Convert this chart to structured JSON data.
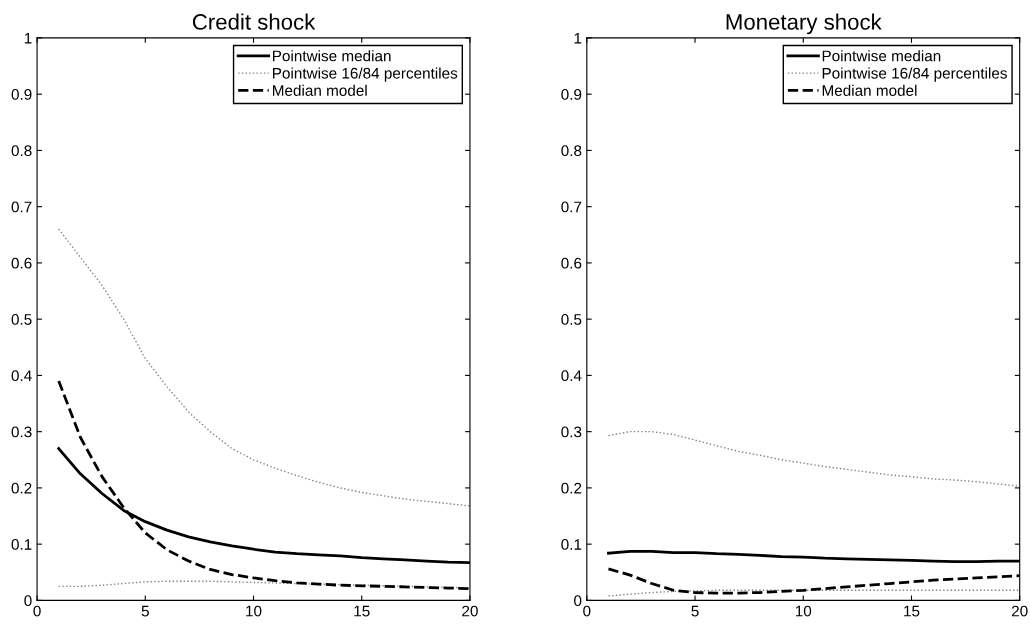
{
  "chart_data": [
    {
      "type": "line",
      "title": "Credit shock",
      "x": [
        1,
        2,
        3,
        4,
        5,
        6,
        7,
        8,
        9,
        10,
        11,
        12,
        13,
        14,
        15,
        16,
        17,
        18,
        19,
        20
      ],
      "xlim": [
        0,
        20
      ],
      "xticks": [
        0,
        5,
        10,
        15,
        20
      ],
      "ylim": [
        0,
        1
      ],
      "yticks": [
        0,
        0.1,
        0.2,
        0.3,
        0.4,
        0.5,
        0.6,
        0.7,
        0.8,
        0.9,
        1
      ],
      "grid": false,
      "legend": "top right",
      "series": [
        {
          "name": "Pointwise median",
          "color": "#000000",
          "line_style": "solid",
          "values": [
            0.27,
            0.225,
            0.19,
            0.16,
            0.14,
            0.125,
            0.113,
            0.104,
            0.097,
            0.091,
            0.086,
            0.083,
            0.081,
            0.079,
            0.076,
            0.074,
            0.072,
            0.07,
            0.068,
            0.067
          ]
        },
        {
          "name": "Pointwise 16/84 percentiles",
          "color": "#808080",
          "line_style": "dotted",
          "values": [
            0.66,
            0.61,
            0.56,
            0.5,
            0.43,
            0.38,
            0.335,
            0.3,
            0.27,
            0.25,
            0.235,
            0.222,
            0.21,
            0.2,
            0.192,
            0.186,
            0.18,
            0.176,
            0.172,
            0.168
          ]
        },
        {
          "color": "#808080",
          "line_style": "dotted",
          "values": [
            0.025,
            0.025,
            0.027,
            0.03,
            0.033,
            0.034,
            0.034,
            0.034,
            0.033,
            0.032,
            0.031,
            0.03,
            0.029,
            0.028,
            0.027,
            0.026,
            0.025,
            0.024,
            0.023,
            0.022
          ]
        },
        {
          "name": "Median model",
          "color": "#000000",
          "line_style": "dashed",
          "values": [
            0.39,
            0.29,
            0.22,
            0.165,
            0.12,
            0.09,
            0.07,
            0.055,
            0.046,
            0.04,
            0.035,
            0.031,
            0.029,
            0.027,
            0.026,
            0.025,
            0.024,
            0.023,
            0.022,
            0.021
          ]
        }
      ]
    },
    {
      "type": "line",
      "title": "Monetary shock",
      "x": [
        1,
        2,
        3,
        4,
        5,
        6,
        7,
        8,
        9,
        10,
        11,
        12,
        13,
        14,
        15,
        16,
        17,
        18,
        19,
        20
      ],
      "xlim": [
        0,
        20
      ],
      "xticks": [
        0,
        5,
        10,
        15,
        20
      ],
      "ylim": [
        0,
        1
      ],
      "yticks": [
        0,
        0.1,
        0.2,
        0.3,
        0.4,
        0.5,
        0.6,
        0.7,
        0.8,
        0.9,
        1
      ],
      "grid": false,
      "legend": "top right",
      "series": [
        {
          "name": "Pointwise median",
          "color": "#000000",
          "line_style": "solid",
          "values": [
            0.084,
            0.087,
            0.087,
            0.085,
            0.085,
            0.083,
            0.082,
            0.08,
            0.078,
            0.077,
            0.075,
            0.074,
            0.073,
            0.072,
            0.071,
            0.07,
            0.069,
            0.069,
            0.07,
            0.07
          ]
        },
        {
          "name": "Pointwise 16/84 percentiles",
          "color": "#808080",
          "line_style": "dotted",
          "values": [
            0.293,
            0.3,
            0.3,
            0.295,
            0.285,
            0.275,
            0.265,
            0.258,
            0.25,
            0.244,
            0.238,
            0.233,
            0.228,
            0.223,
            0.22,
            0.216,
            0.214,
            0.211,
            0.207,
            0.203
          ]
        },
        {
          "color": "#808080",
          "line_style": "dotted",
          "values": [
            0.008,
            0.011,
            0.014,
            0.016,
            0.017,
            0.018,
            0.018,
            0.018,
            0.018,
            0.018,
            0.018,
            0.018,
            0.018,
            0.018,
            0.018,
            0.018,
            0.018,
            0.018,
            0.018,
            0.018
          ]
        },
        {
          "name": "Median model",
          "color": "#000000",
          "line_style": "dashed",
          "values": [
            0.056,
            0.045,
            0.03,
            0.018,
            0.014,
            0.013,
            0.013,
            0.014,
            0.016,
            0.018,
            0.021,
            0.024,
            0.027,
            0.03,
            0.033,
            0.036,
            0.038,
            0.04,
            0.042,
            0.044
          ]
        }
      ]
    }
  ]
}
